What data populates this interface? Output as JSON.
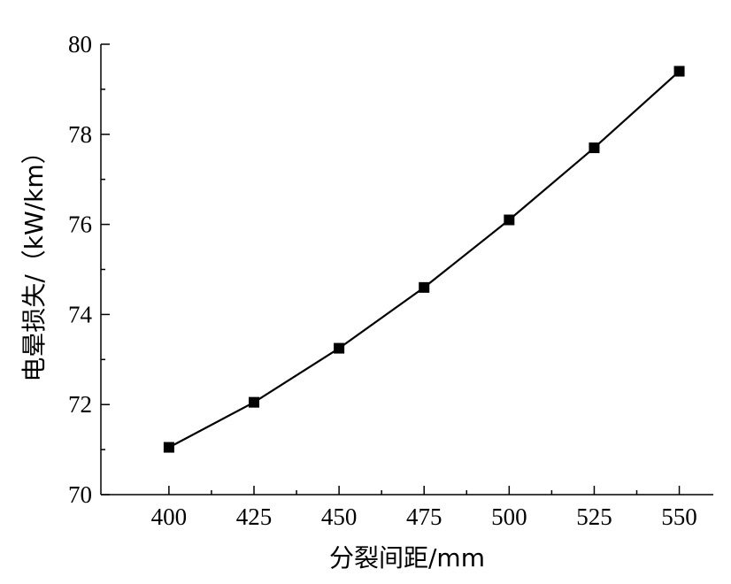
{
  "chart_data": {
    "type": "line",
    "title": "",
    "xlabel": "分裂间距/mm",
    "ylabel": "电晕损失/（kW/km）",
    "xlim": [
      380,
      560
    ],
    "ylim": [
      70,
      80
    ],
    "x_ticks": [
      400,
      425,
      450,
      475,
      500,
      525,
      550
    ],
    "x_tick_labels": [
      "400",
      "425",
      "450",
      "475",
      "500",
      "525",
      "550"
    ],
    "y_ticks": [
      70,
      72,
      74,
      76,
      78,
      80
    ],
    "y_tick_labels": [
      "70",
      "72",
      "74",
      "76",
      "78",
      "80"
    ],
    "grid": false,
    "legend": "none",
    "series": [
      {
        "marker": "square",
        "color": "#000000",
        "x": [
          400,
          425,
          450,
          475,
          500,
          525,
          550
        ],
        "y": [
          71.05,
          72.05,
          73.25,
          74.6,
          76.1,
          77.7,
          79.4
        ]
      }
    ]
  }
}
